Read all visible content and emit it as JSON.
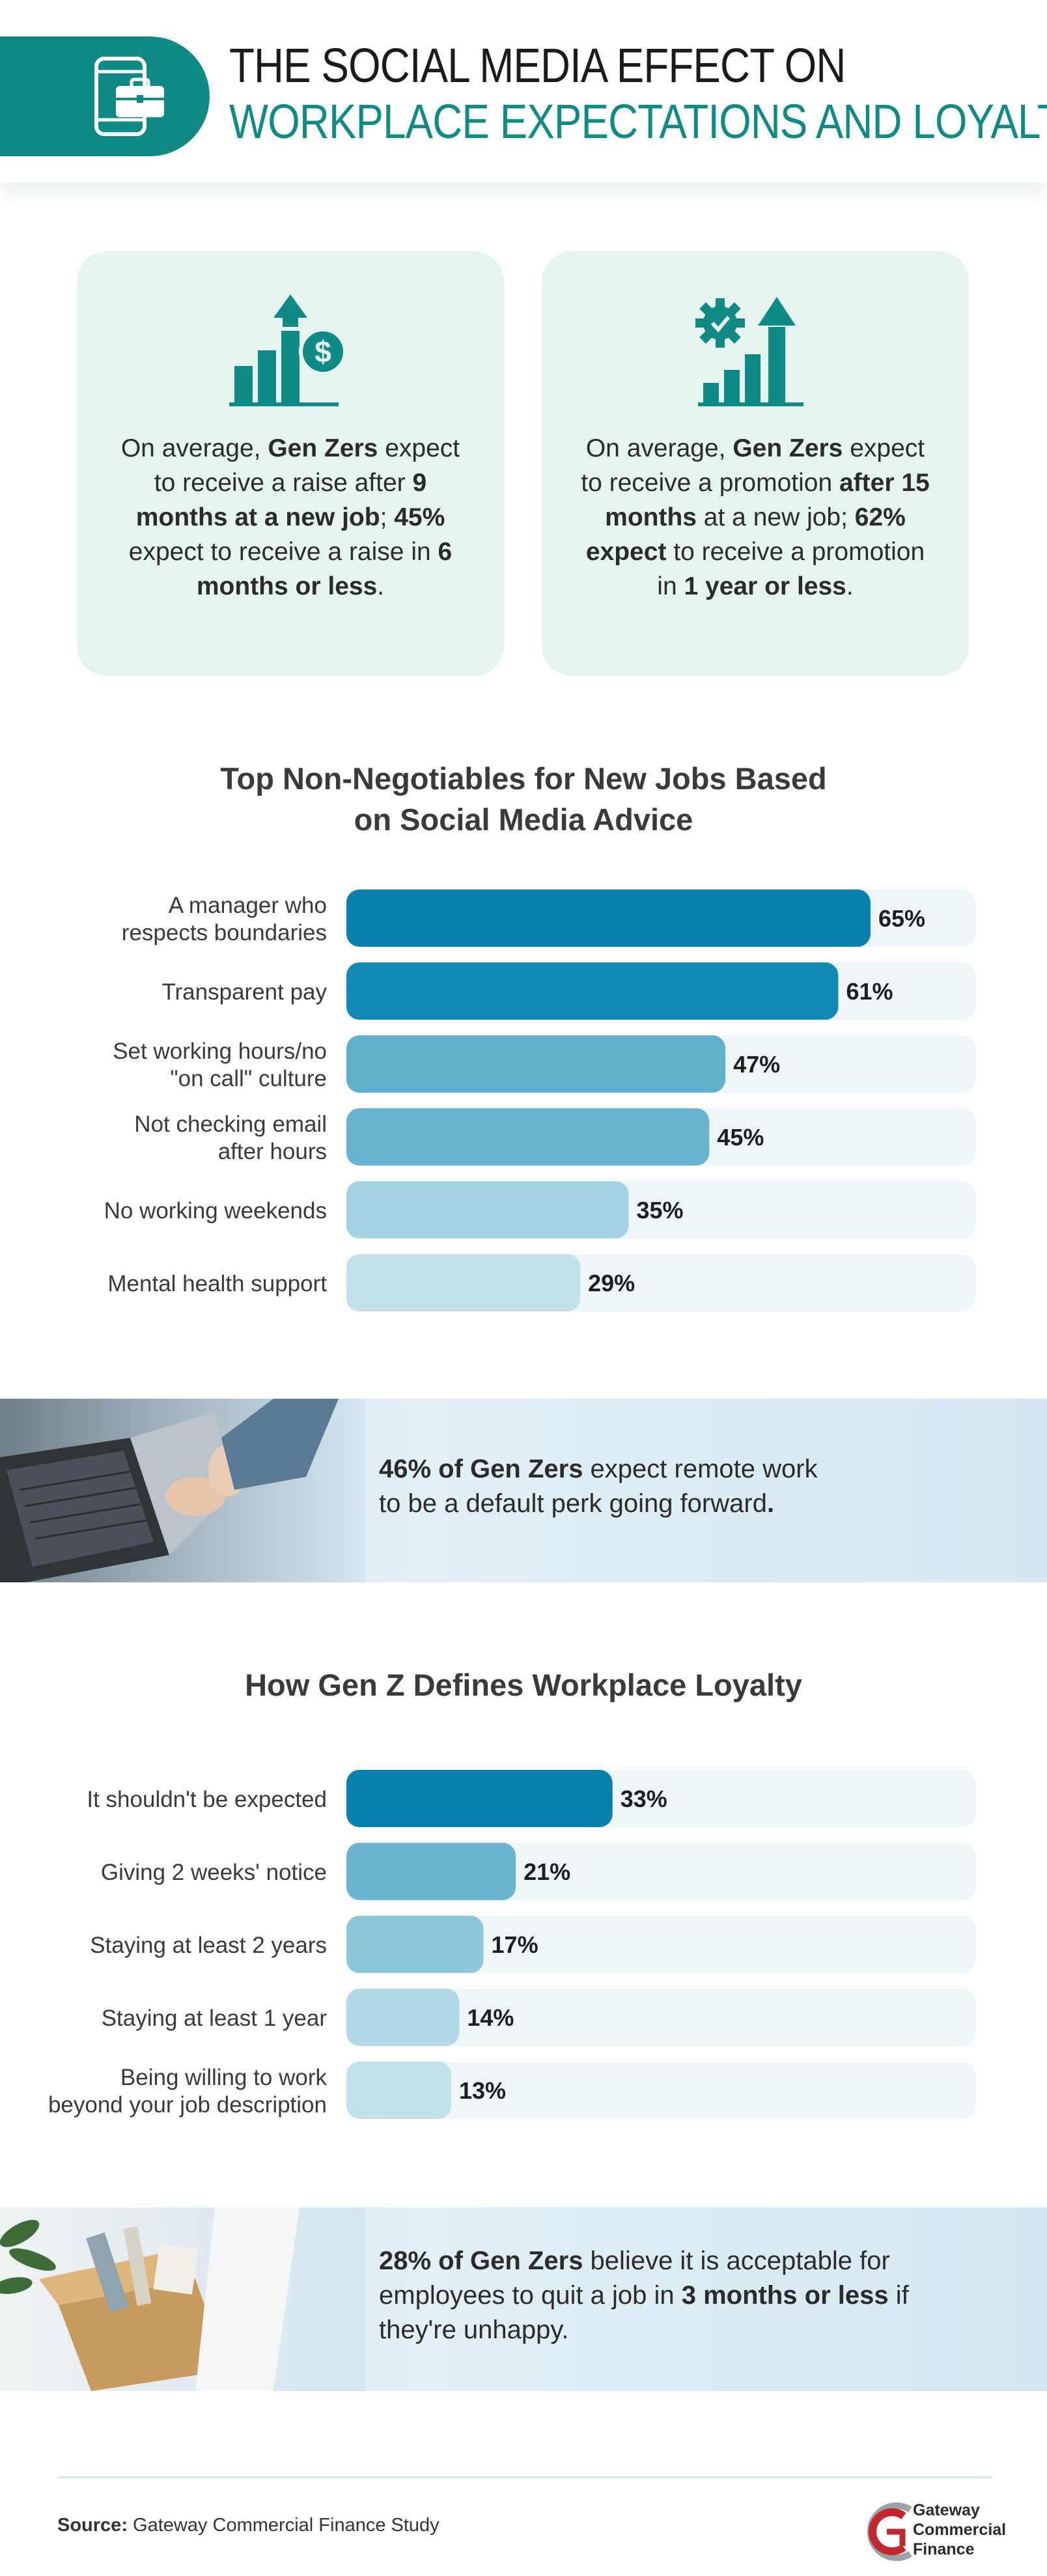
{
  "header": {
    "title_line1": "THE SOCIAL MEDIA EFFECT ON",
    "title_line2": "WORKPLACE EXPECTATIONS AND LOYALTY",
    "icon": "briefcase-phone-icon"
  },
  "stat_cards": [
    {
      "icon": "raise-chart-icon",
      "parts": [
        {
          "t": "On average, ",
          "b": false
        },
        {
          "t": "Gen Zers",
          "b": true
        },
        {
          "t": " expect to receive a raise after ",
          "b": false
        },
        {
          "t": "9 months at a new job",
          "b": true
        },
        {
          "t": "; ",
          "b": false
        },
        {
          "t": "45%",
          "b": true
        },
        {
          "t": " expect to receive a raise in ",
          "b": false
        },
        {
          "t": "6 months or less",
          "b": true
        },
        {
          "t": ".",
          "b": false
        }
      ]
    },
    {
      "icon": "promotion-gear-icon",
      "parts": [
        {
          "t": "On average, ",
          "b": false
        },
        {
          "t": "Gen Zers",
          "b": true
        },
        {
          "t": " expect to receive a promotion ",
          "b": false
        },
        {
          "t": "after 15 months",
          "b": true
        },
        {
          "t": " at a new job; ",
          "b": false
        },
        {
          "t": "62% expect",
          "b": true
        },
        {
          "t": " to receive a promotion in ",
          "b": false
        },
        {
          "t": "1 year or less",
          "b": true
        },
        {
          "t": ".",
          "b": false
        }
      ]
    }
  ],
  "chart_data": [
    {
      "type": "bar",
      "orientation": "horizontal",
      "title": "Top Non-Negotiables for New Jobs Based on Social Media Advice",
      "title_lines": [
        "Top Non-Negotiables for New Jobs Based",
        "on Social Media Advice"
      ],
      "categories": [
        [
          "A manager who",
          "respects boundaries"
        ],
        [
          "Transparent pay"
        ],
        [
          "Set working hours/no",
          "\"on call\" culture"
        ],
        [
          "Not checking email",
          "after hours"
        ],
        [
          "No working weekends"
        ],
        [
          "Mental health support"
        ]
      ],
      "values": [
        65,
        61,
        47,
        45,
        35,
        29
      ],
      "value_labels": [
        "65%",
        "61%",
        "47%",
        "45%",
        "35%",
        "29%"
      ],
      "xlim": [
        0,
        78
      ],
      "colors": [
        "#0b7fae",
        "#1288b6",
        "#5fb0cc",
        "#66b4cf",
        "#a4d2e1",
        "#c2e1eb"
      ],
      "track_color": "#eef6f9"
    },
    {
      "type": "bar",
      "orientation": "horizontal",
      "title": "How Gen Z Defines Workplace Loyalty",
      "title_lines": [
        "How Gen Z Defines Workplace Loyalty"
      ],
      "categories": [
        [
          "It shouldn't be expected"
        ],
        [
          "Giving 2 weeks' notice"
        ],
        [
          "Staying at least 2 years"
        ],
        [
          "Staying at least 1 year"
        ],
        [
          "Being willing to work",
          "beyond your job description"
        ]
      ],
      "values": [
        33,
        21,
        17,
        14,
        13
      ],
      "value_labels": [
        "33%",
        "21%",
        "17%",
        "14%",
        "13%"
      ],
      "xlim": [
        0,
        78
      ],
      "colors": [
        "#0b7fae",
        "#6ab6d0",
        "#8cc7da",
        "#b4d9e6",
        "#c2e1eb"
      ],
      "track_color": "#eef6f9"
    }
  ],
  "callouts": [
    {
      "parts": [
        {
          "t": "46% of Gen Zers",
          "b": true
        },
        {
          "t": " expect remote work",
          "b": false
        },
        {
          "t": "\n",
          "b": false
        },
        {
          "t": "to be a default perk going forward",
          "b": false
        },
        {
          "t": ".",
          "b": true
        }
      ],
      "photo": "laptop-hands-photo"
    },
    {
      "parts": [
        {
          "t": "28% of Gen Zers",
          "b": true
        },
        {
          "t": " believe it is acceptable for",
          "b": false
        },
        {
          "t": "\n",
          "b": false
        },
        {
          "t": "employees to quit a job in ",
          "b": false
        },
        {
          "t": "3 months or less",
          "b": true
        },
        {
          "t": " if",
          "b": false
        },
        {
          "t": "\n",
          "b": false
        },
        {
          "t": "they're unhappy.",
          "b": false
        }
      ],
      "photo": "box-of-belongings-photo"
    }
  ],
  "footer": {
    "source_label": "Source:",
    "source_text": " Gateway Commercial Finance Study",
    "logo_lines": [
      "Gateway",
      "Commercial",
      "Finance"
    ]
  }
}
